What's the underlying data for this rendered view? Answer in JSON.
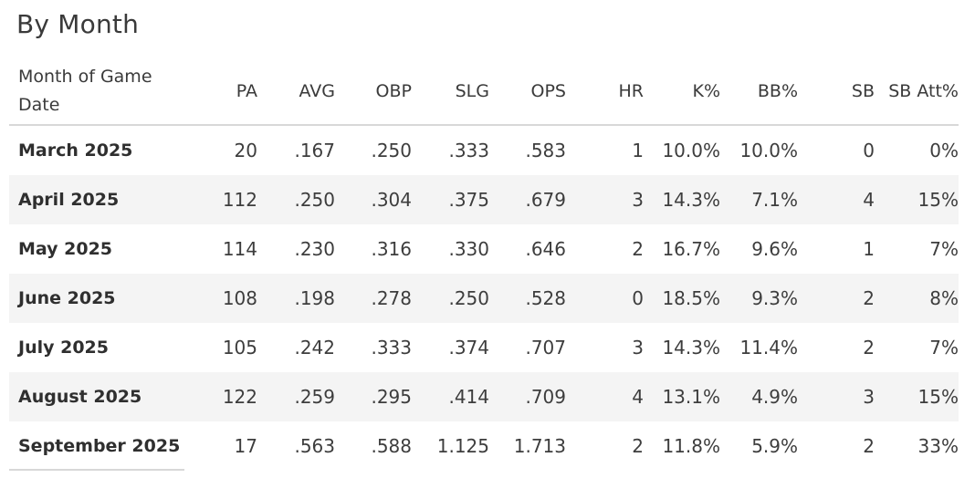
{
  "section_title": "By Month",
  "table": {
    "columns": [
      {
        "label": "Month of Game Date"
      },
      {
        "label": "PA"
      },
      {
        "label": "AVG"
      },
      {
        "label": "OBP"
      },
      {
        "label": "SLG"
      },
      {
        "label": "OPS"
      },
      {
        "label": "HR"
      },
      {
        "label": "K%"
      },
      {
        "label": "BB%"
      },
      {
        "label": "SB"
      },
      {
        "label": "SB Att%"
      }
    ],
    "rows": [
      {
        "month": "March 2025",
        "pa": "20",
        "avg": ".167",
        "obp": ".250",
        "slg": ".333",
        "ops": ".583",
        "hr": "1",
        "k_pct": "10.0%",
        "bb_pct": "10.0%",
        "sb": "0",
        "sb_att_pct": "0%"
      },
      {
        "month": "April 2025",
        "pa": "112",
        "avg": ".250",
        "obp": ".304",
        "slg": ".375",
        "ops": ".679",
        "hr": "3",
        "k_pct": "14.3%",
        "bb_pct": "7.1%",
        "sb": "4",
        "sb_att_pct": "15%"
      },
      {
        "month": "May 2025",
        "pa": "114",
        "avg": ".230",
        "obp": ".316",
        "slg": ".330",
        "ops": ".646",
        "hr": "2",
        "k_pct": "16.7%",
        "bb_pct": "9.6%",
        "sb": "1",
        "sb_att_pct": "7%"
      },
      {
        "month": "June 2025",
        "pa": "108",
        "avg": ".198",
        "obp": ".278",
        "slg": ".250",
        "ops": ".528",
        "hr": "0",
        "k_pct": "18.5%",
        "bb_pct": "9.3%",
        "sb": "2",
        "sb_att_pct": "8%"
      },
      {
        "month": "July 2025",
        "pa": "105",
        "avg": ".242",
        "obp": ".333",
        "slg": ".374",
        "ops": ".707",
        "hr": "3",
        "k_pct": "14.3%",
        "bb_pct": "11.4%",
        "sb": "2",
        "sb_att_pct": "7%"
      },
      {
        "month": "August 2025",
        "pa": "122",
        "avg": ".259",
        "obp": ".295",
        "slg": ".414",
        "ops": ".709",
        "hr": "4",
        "k_pct": "13.1%",
        "bb_pct": "4.9%",
        "sb": "3",
        "sb_att_pct": "15%"
      },
      {
        "month": "September 2025",
        "pa": "17",
        "avg": ".563",
        "obp": ".588",
        "slg": "1.125",
        "ops": "1.713",
        "hr": "2",
        "k_pct": "11.8%",
        "bb_pct": "5.9%",
        "sb": "2",
        "sb_att_pct": "33%"
      }
    ]
  }
}
